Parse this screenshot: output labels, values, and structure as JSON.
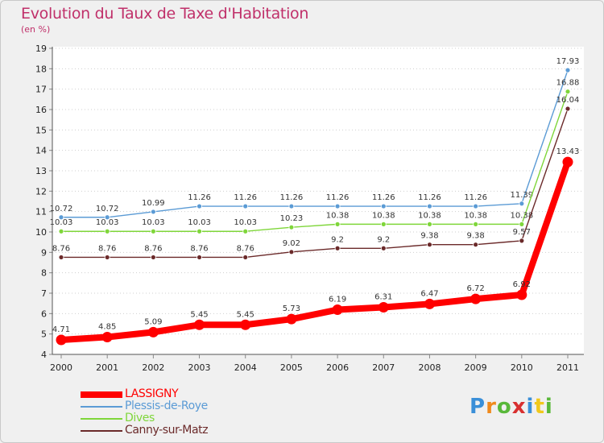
{
  "chart_data": {
    "type": "line",
    "title": "Evolution du Taux de Taxe d'Habitation",
    "subtitle": "(en %)",
    "xlabel": "",
    "ylabel": "",
    "categories": [
      "2000",
      "2001",
      "2002",
      "2003",
      "2004",
      "2005",
      "2006",
      "2007",
      "2008",
      "2009",
      "2010",
      "2011"
    ],
    "ylim": [
      4,
      19
    ],
    "yticks": [
      4,
      5,
      6,
      7,
      8,
      9,
      10,
      11,
      12,
      13,
      14,
      15,
      16,
      17,
      18,
      19
    ],
    "grid": "horizontal dotted",
    "legend_position": "bottom-left",
    "series": [
      {
        "name": "LASSIGNY",
        "color": "#ff0000",
        "emphasis": true,
        "values": [
          4.71,
          4.85,
          5.09,
          5.45,
          5.45,
          5.73,
          6.19,
          6.31,
          6.47,
          6.72,
          6.92,
          13.43
        ]
      },
      {
        "name": "Plessis-de-Roye",
        "color": "#5b9bd5",
        "values": [
          10.72,
          10.72,
          10.99,
          11.26,
          11.26,
          11.26,
          11.26,
          11.26,
          11.26,
          11.26,
          11.39,
          17.93
        ]
      },
      {
        "name": "Dives",
        "color": "#7fd63a",
        "values": [
          10.03,
          10.03,
          10.03,
          10.03,
          10.03,
          10.23,
          10.38,
          10.38,
          10.38,
          10.38,
          10.38,
          16.88
        ]
      },
      {
        "name": "Canny-sur-Matz",
        "color": "#6b2a2a",
        "values": [
          8.76,
          8.76,
          8.76,
          8.76,
          8.76,
          9.02,
          9.2,
          9.2,
          9.38,
          9.38,
          9.57,
          16.04
        ]
      }
    ]
  },
  "brand": {
    "letters": [
      "P",
      "r",
      "o",
      "x",
      "i",
      "t",
      "i"
    ],
    "colors": [
      "#3a8fd8",
      "#f08a1c",
      "#59b83a",
      "#d83030",
      "#3a8fd8",
      "#f0c81c",
      "#59b83a"
    ]
  }
}
